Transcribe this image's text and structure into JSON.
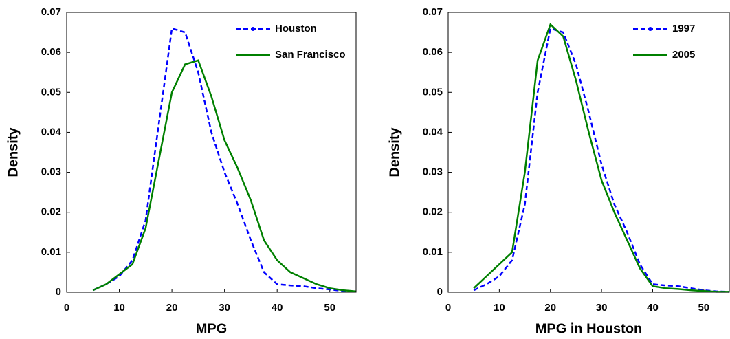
{
  "chart_data": [
    {
      "type": "line",
      "xlabel": "MPG",
      "ylabel": "Density",
      "x": [
        5,
        7.5,
        10,
        12.5,
        15,
        17.5,
        20,
        22.5,
        25,
        27.5,
        30,
        32.5,
        35,
        37.5,
        40,
        42.5,
        45,
        47.5,
        50,
        52.5,
        55
      ],
      "series": [
        {
          "name": "Houston",
          "color": "#0000ff",
          "linestyle": "dashed",
          "values": [
            0.0005,
            0.002,
            0.004,
            0.008,
            0.018,
            0.042,
            0.066,
            0.065,
            0.055,
            0.04,
            0.03,
            0.022,
            0.013,
            0.005,
            0.002,
            0.0017,
            0.0015,
            0.001,
            0.0007,
            0.0003,
            0.0001
          ]
        },
        {
          "name": "San Francisco",
          "color": "#008000",
          "linestyle": "solid",
          "values": [
            0.0005,
            0.002,
            0.0045,
            0.007,
            0.016,
            0.033,
            0.05,
            0.057,
            0.058,
            0.049,
            0.038,
            0.031,
            0.023,
            0.013,
            0.008,
            0.005,
            0.0035,
            0.002,
            0.001,
            0.0005,
            0.0002
          ]
        }
      ],
      "xlim": [
        0,
        55
      ],
      "xticks": [
        0,
        10,
        20,
        30,
        40,
        50
      ],
      "ylim": [
        0,
        0.07
      ],
      "yticks": [
        0,
        0.01,
        0.02,
        0.03,
        0.04,
        0.05,
        0.06,
        0.07
      ],
      "legend": "upper right"
    },
    {
      "type": "line",
      "xlabel": "MPG in Houston",
      "ylabel": "Density",
      "x": [
        5,
        7.5,
        10,
        12.5,
        15,
        17.5,
        20,
        22.5,
        25,
        27.5,
        30,
        32.5,
        35,
        37.5,
        40,
        42.5,
        45,
        47.5,
        50,
        52.5,
        55
      ],
      "series": [
        {
          "name": "1997",
          "color": "#0000ff",
          "linestyle": "dashed",
          "values": [
            0.0005,
            0.002,
            0.004,
            0.008,
            0.022,
            0.05,
            0.066,
            0.065,
            0.057,
            0.045,
            0.032,
            0.022,
            0.015,
            0.007,
            0.002,
            0.0017,
            0.0015,
            0.001,
            0.0005,
            0.0002,
            0.0001
          ]
        },
        {
          "name": "2005",
          "color": "#008000",
          "linestyle": "solid",
          "values": [
            0.001,
            0.004,
            0.007,
            0.01,
            0.03,
            0.058,
            0.067,
            0.064,
            0.053,
            0.04,
            0.028,
            0.02,
            0.013,
            0.006,
            0.0015,
            0.001,
            0.0008,
            0.0005,
            0.0003,
            0.0001,
            0.0001
          ]
        }
      ],
      "xlim": [
        0,
        55
      ],
      "xticks": [
        0,
        10,
        20,
        30,
        40,
        50
      ],
      "ylim": [
        0,
        0.07
      ],
      "yticks": [
        0,
        0.01,
        0.02,
        0.03,
        0.04,
        0.05,
        0.06,
        0.07
      ],
      "legend": "upper right"
    }
  ]
}
